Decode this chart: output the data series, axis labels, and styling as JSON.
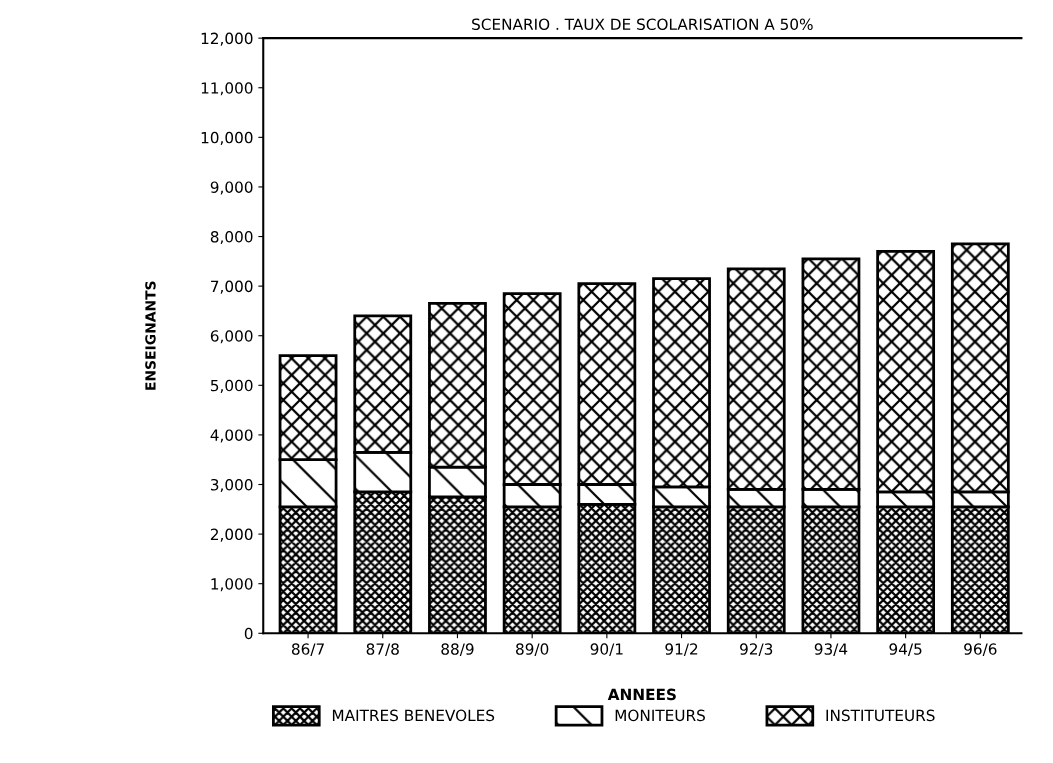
{
  "chart_data": {
    "type": "bar",
    "stacked": true,
    "title": "SCENARIO . TAUX DE SCOLARISATION A 50%",
    "xlabel": "ANNEES",
    "ylabel": "ENSEIGNANTS",
    "categories": [
      "86/7",
      "87/8",
      "88/9",
      "89/0",
      "90/1",
      "91/2",
      "92/3",
      "93/4",
      "94/5",
      "96/6"
    ],
    "series": [
      {
        "name": "MAITRES BENEVOLES",
        "color": "#000000",
        "values": [
          2550,
          2850,
          2750,
          2550,
          2600,
          2550,
          2550,
          2550,
          2550,
          2550
        ]
      },
      {
        "name": "MONITEURS",
        "color": "#000000",
        "values": [
          950,
          800,
          600,
          450,
          400,
          400,
          350,
          350,
          300,
          300
        ]
      },
      {
        "name": "INSTITUTEURS",
        "color": "#000000",
        "values": [
          2100,
          2750,
          3300,
          3850,
          4050,
          4200,
          4450,
          4650,
          4850,
          5000
        ]
      }
    ],
    "ylim": [
      0,
      12000
    ],
    "yticks": [
      0,
      {
        "value": 1000,
        "label": "1,000"
      },
      {
        "value": 2000,
        "label": "2,000"
      },
      {
        "value": 3000,
        "label": "3,000"
      },
      {
        "value": 4000,
        "label": "4,000"
      },
      {
        "value": 5000,
        "label": "5,000"
      },
      {
        "value": 6000,
        "label": "6,000"
      },
      {
        "value": 7000,
        "label": "7,000"
      },
      {
        "value": 8000,
        "label": "8,000"
      },
      {
        "value": 9000,
        "label": "9,000"
      },
      {
        "value": 10000,
        "label": "10,000"
      },
      {
        "value": 11000,
        "label": "11,000"
      },
      {
        "value": 12000,
        "label": "12,000"
      }
    ],
    "grid": false,
    "legend": "bottom"
  }
}
